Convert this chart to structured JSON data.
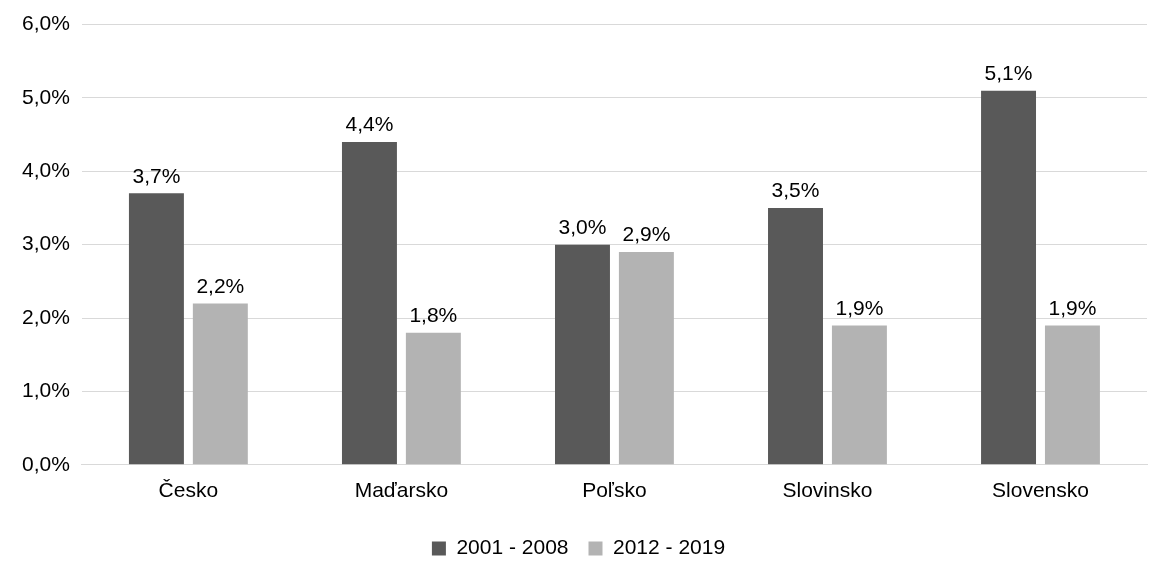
{
  "chart_data": {
    "type": "bar",
    "categories": [
      "Česko",
      "Maďarsko",
      "Poľsko",
      "Slovinsko",
      "Slovensko"
    ],
    "series": [
      {
        "name": "2001 - 2008",
        "color": "#595959",
        "values": [
          3.7,
          4.4,
          3.0,
          3.5,
          5.1
        ],
        "value_labels": [
          "3,7%",
          "4,4%",
          "3,0%",
          "3,5%",
          "5,1%"
        ]
      },
      {
        "name": "2012 - 2019",
        "color": "#b3b3b3",
        "values": [
          2.2,
          1.8,
          2.9,
          1.9,
          1.9
        ],
        "value_labels": [
          "2,2%",
          "1,8%",
          "2,9%",
          "1,9%",
          "1,9%"
        ]
      }
    ],
    "ylim": [
      0,
      6
    ],
    "yticks": [
      {
        "value": 0,
        "label": "0,0%"
      },
      {
        "value": 1,
        "label": "1,0%"
      },
      {
        "value": 2,
        "label": "2,0%"
      },
      {
        "value": 3,
        "label": "3,0%"
      },
      {
        "value": 4,
        "label": "4,0%"
      },
      {
        "value": 5,
        "label": "5,0%"
      },
      {
        "value": 6,
        "label": "6,0%"
      }
    ],
    "grid": "y",
    "legend": "bottom"
  }
}
